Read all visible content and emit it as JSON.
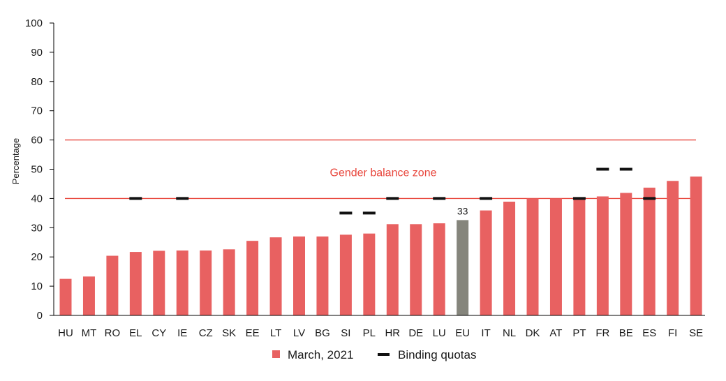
{
  "chart_data": {
    "type": "bar",
    "categories": [
      "HU",
      "MT",
      "RO",
      "EL",
      "CY",
      "IE",
      "CZ",
      "SK",
      "EE",
      "LT",
      "LV",
      "BG",
      "SI",
      "PL",
      "HR",
      "DE",
      "LU",
      "EU",
      "IT",
      "NL",
      "DK",
      "AT",
      "PT",
      "FR",
      "BE",
      "ES",
      "FI",
      "SE"
    ],
    "series": [
      {
        "name": "March, 2021",
        "values": [
          12.5,
          13.3,
          20.4,
          21.7,
          22.1,
          22.2,
          22.2,
          22.6,
          25.5,
          26.7,
          27.0,
          27.0,
          27.6,
          28.0,
          31.2,
          31.2,
          31.5,
          32.6,
          35.9,
          38.9,
          40.0,
          40.0,
          40.2,
          40.7,
          41.9,
          43.7,
          46.0,
          47.5
        ],
        "colors": {
          "default": "#e86161",
          "EU": "#85857c"
        }
      },
      {
        "name": "Binding quotas",
        "type": "marker",
        "points": [
          {
            "category": "EL",
            "value": 40
          },
          {
            "category": "IE",
            "value": 40
          },
          {
            "category": "SI",
            "value": 35
          },
          {
            "category": "PL",
            "value": 35
          },
          {
            "category": "HR",
            "value": 40
          },
          {
            "category": "LU",
            "value": 40
          },
          {
            "category": "IT",
            "value": 40
          },
          {
            "category": "PT",
            "value": 40
          },
          {
            "category": "FR",
            "value": 50
          },
          {
            "category": "BE",
            "value": 50
          },
          {
            "category": "ES",
            "value": 40
          }
        ]
      }
    ],
    "data_labels": [
      {
        "category": "EU",
        "text": "33"
      }
    ],
    "reference_lines": [
      40,
      60
    ],
    "zone_label": "Gender balance zone",
    "zone_label_value": 49,
    "ylabel": "Percentage",
    "xlabel": "",
    "ylim": [
      0,
      100
    ],
    "yticks": [
      0,
      10,
      20,
      30,
      40,
      50,
      60,
      70,
      80,
      90,
      100
    ],
    "grid": false,
    "legend_position": "bottom",
    "colors": {
      "bar": "#e86161",
      "eu_bar": "#85857c",
      "reference_line": "#e8473d",
      "zone_text": "#e8473d",
      "quota_marker": "#111111",
      "axis": "#000000"
    }
  }
}
